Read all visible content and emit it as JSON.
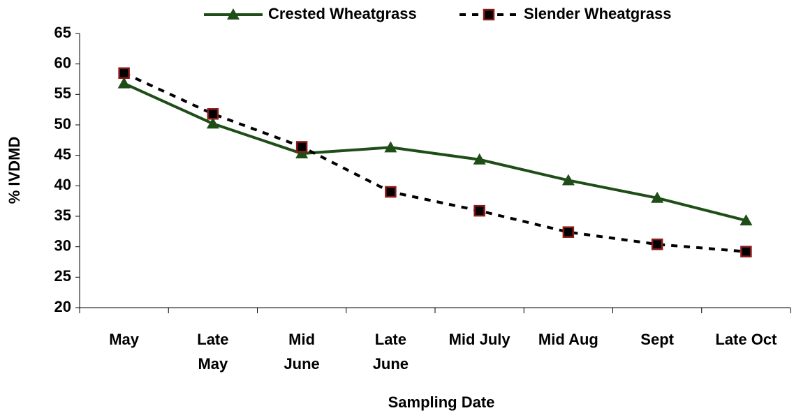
{
  "chart_data": {
    "type": "line",
    "x_label": "Sampling Date",
    "y_label": "% IVDMD",
    "categories": [
      "May",
      "Late\nMay",
      "Mid\nJune",
      "Late\nJune",
      "Mid July",
      "Mid Aug",
      "Sept",
      "Late Oct"
    ],
    "series": [
      {
        "name": "Crested Wheatgrass",
        "color": "#1e4d17",
        "dashed": false,
        "marker": "triangle",
        "values": [
          56.8,
          50.2,
          45.3,
          46.3,
          44.3,
          40.9,
          38.0,
          34.3
        ]
      },
      {
        "name": "Slender Wheatgrass",
        "color": "#000000",
        "marker_edge": "#8b1a1a",
        "dashed": true,
        "marker": "square",
        "values": [
          58.5,
          51.8,
          46.4,
          39.0,
          35.9,
          32.4,
          30.4,
          29.2
        ]
      }
    ],
    "ylim": [
      20,
      65
    ],
    "yticks": [
      20,
      25,
      30,
      35,
      40,
      45,
      50,
      55,
      60,
      65
    ],
    "legend": "top"
  }
}
